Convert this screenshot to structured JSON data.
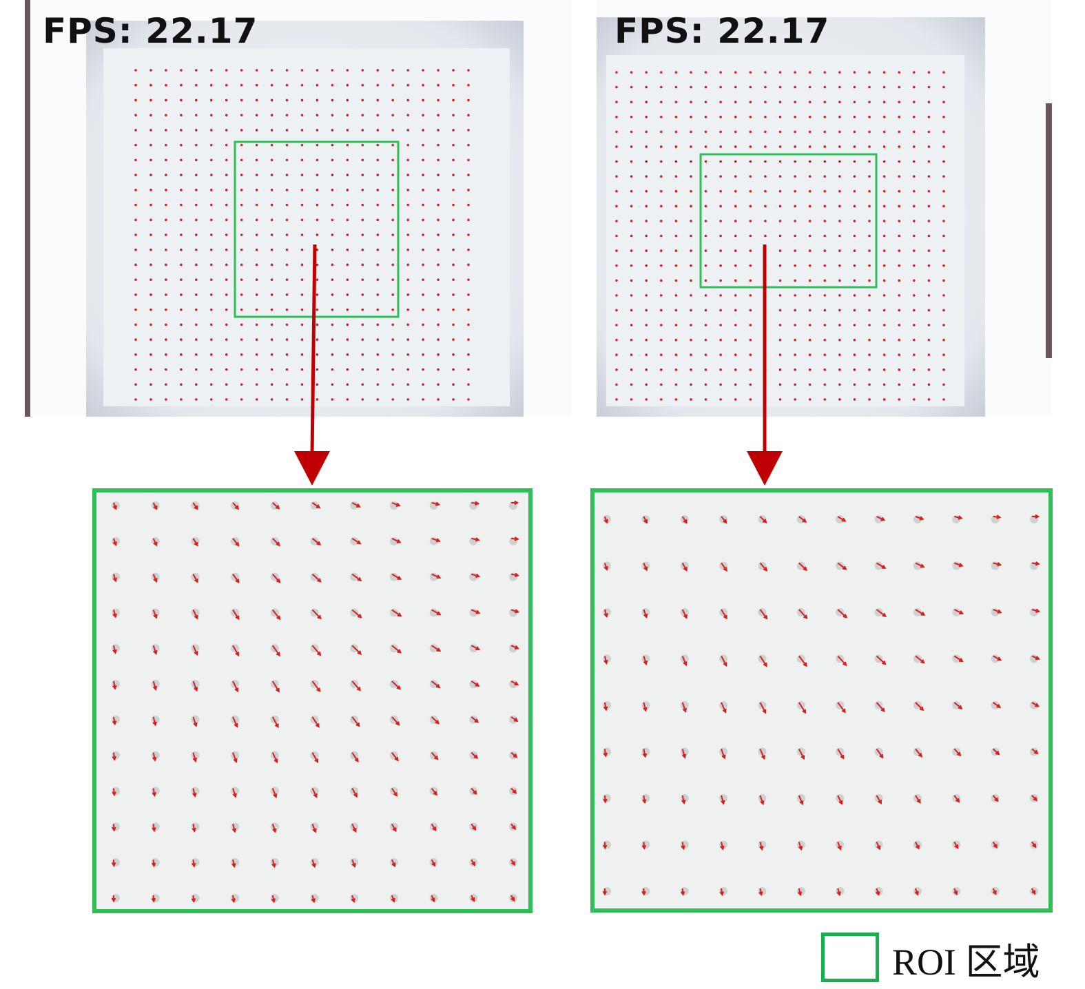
{
  "panels": [
    {
      "id": "left",
      "fps_label": "FPS:  22.17"
    },
    {
      "id": "right",
      "fps_label": "FPS:  22.17"
    }
  ],
  "legend": {
    "label": "ROI 区域",
    "box_color": "#16b04c"
  },
  "colors": {
    "roi": "#2ec057",
    "marker": "#d42020",
    "connector_arrow": "#c00000",
    "surface": "#e9edf1"
  }
}
